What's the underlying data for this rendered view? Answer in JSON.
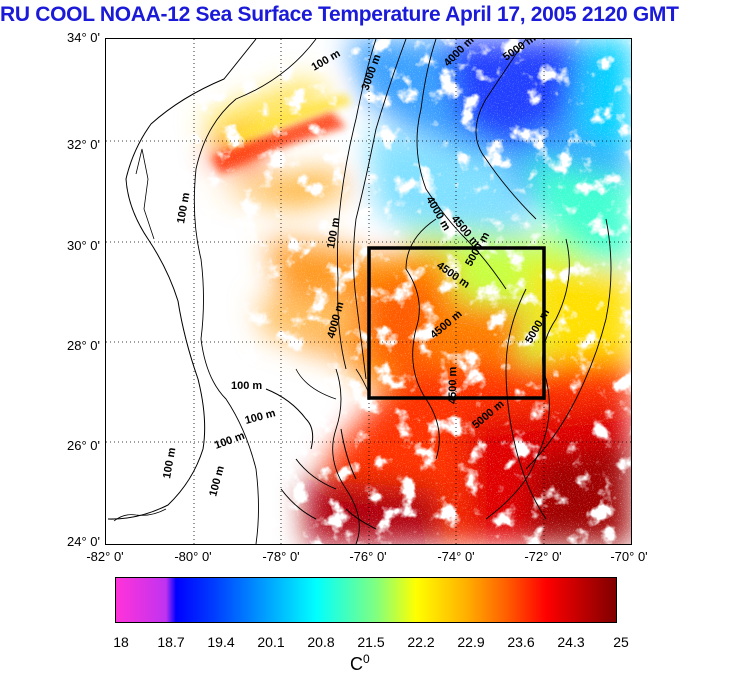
{
  "title": "RU COOL  NOAA-12 Sea Surface Temperature April 17, 2005 2120 GMT",
  "map": {
    "lat_labels": [
      "34° 0'",
      "32° 0'",
      "30° 0'",
      "28° 0'",
      "26° 0'",
      "24° 0'"
    ],
    "lon_labels": [
      "-82° 0'",
      "-80° 0'",
      "-78° 0'",
      "-76° 0'",
      "-74° 0'",
      "-72° 0'",
      "-70° 0'"
    ],
    "contour_labels": [
      "100 m",
      "3000 m",
      "4000 m",
      "5000 m",
      "100 m",
      "4000 m",
      "4500 m",
      "100 m",
      "4500 m",
      "5000 m",
      "4000 m",
      "5000 m",
      "4500 m",
      "100 m",
      "100 m",
      "100 m",
      "4500 m",
      "5000 m",
      "100 m",
      "100 m"
    ],
    "region_box": {
      "lon_min": -76.0,
      "lon_max": -72.0,
      "lat_min": 27.0,
      "lat_max": 30.0
    }
  },
  "colorbar": {
    "ticks": [
      "18",
      "18.7",
      "19.4",
      "20.1",
      "20.8",
      "21.5",
      "22.2",
      "22.9",
      "23.6",
      "24.3",
      "25"
    ],
    "unit": "C",
    "unit_sup": "0"
  }
}
